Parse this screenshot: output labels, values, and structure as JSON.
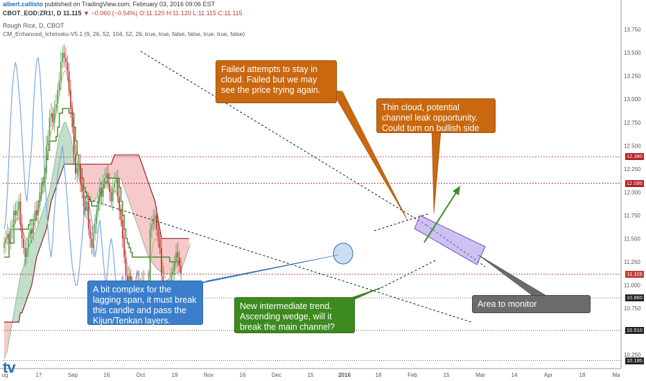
{
  "header": {
    "user": "albert.callisto",
    "published": "published on TradingView.com, February 03, 2016 09:06 EST",
    "symbol": "CBOT_EOD:ZR1!, D",
    "last": "11.115",
    "change": "▼ −0.060 (−0.54%)",
    "ohlc": "O:11.120 H:11.120 L:11.115 C:11.115",
    "instrument": "Rough Rice, D, CBOT",
    "indicator": "CM_Enhanced_Ichimoku-V5.1 (9, 26, 52, 104, 52, 26, true, true, false, false, true, true, false)"
  },
  "colors": {
    "up": "#53a153",
    "down": "#c13b3b",
    "tenkan": "#e0a060",
    "kijun": "#3f8f2d",
    "chikou": "#7aa6e6",
    "cloud_bull": "#a9d1b5",
    "cloud_bear": "#f2b3b3",
    "note_orange": "#c9680f",
    "note_blue": "#3b7fcc",
    "note_green": "#3d8a1f",
    "note_grey": "#6b6b6b",
    "level_red": "#b22222"
  },
  "annotations": [
    {
      "id": "failed",
      "text": "Failed attempts to stay in cloud. Failed but we may see the price trying again."
    },
    {
      "id": "thin",
      "text": "Thin cloud, potential channel leak opportunity. Could turn on bullish side"
    },
    {
      "id": "lagging",
      "text": "A bit complex for the lagging span, it must break this candle and pass the Kijun/Tenkan layers."
    },
    {
      "id": "intermediate",
      "text": "New intermediate trend. Ascending wedge, will it break the main channel?"
    },
    {
      "id": "area",
      "text": "Area to monitor"
    }
  ],
  "price_labels": [
    {
      "label": "12.380",
      "color": "#b22222"
    },
    {
      "label": "12.095",
      "color": "#b22222"
    },
    {
      "label": "11.115",
      "color": "#c13b3b"
    },
    {
      "label": "10.860",
      "color": "#222222"
    },
    {
      "label": "10.510",
      "color": "#222222"
    },
    {
      "label": "10.185",
      "color": "#222222"
    }
  ],
  "watermark": "tv",
  "chart_data": {
    "type": "candlestick",
    "title": "Rough Rice, D, CBOT",
    "ylim": [
      10.1,
      13.8
    ],
    "y_ticks": [
      "13.750",
      "13.500",
      "13.250",
      "13.000",
      "12.750",
      "12.500",
      "12.250",
      "12.000",
      "11.750",
      "11.500",
      "11.250",
      "11.000",
      "10.750",
      "10.500",
      "10.250"
    ],
    "x_ticks": [
      "ug",
      "17",
      "Sep",
      "16",
      "Oct",
      "19",
      "Nov",
      "16",
      "Dec",
      "15",
      "2016",
      "18",
      "Feb",
      "15",
      "Mar",
      "14",
      "Apr",
      "18",
      "Ma"
    ],
    "grid": false,
    "series": [
      {
        "name": "Price",
        "type": "candle",
        "close": [
          11.45,
          11.5,
          11.55,
          11.45,
          11.6,
          11.6,
          11.8,
          11.75,
          11.8,
          11.9,
          11.65,
          11.5,
          11.4,
          11.3,
          11.4,
          11.5,
          11.6,
          11.55,
          11.7,
          11.8,
          11.75,
          11.85,
          12.0,
          12.05,
          12.1,
          12.2,
          12.5,
          12.6,
          12.8,
          12.85,
          12.75,
          12.9,
          12.95,
          13.1,
          13.2,
          13.4,
          13.5,
          13.45,
          13.4,
          13.3,
          13.1,
          12.9,
          12.7,
          12.4,
          12.2,
          12.25,
          12.3,
          12.1,
          12.0,
          11.85,
          11.8,
          11.9,
          11.6,
          11.5,
          11.4,
          11.55,
          11.65,
          11.8,
          11.9,
          12.05,
          11.95,
          12.1,
          12.15,
          12.2,
          12.1,
          12.0,
          11.9,
          12.05,
          12.1,
          12.15,
          11.95,
          11.8,
          11.7,
          11.5,
          11.3,
          11.1,
          10.95,
          11.1,
          11.0,
          10.9,
          10.85,
          10.95,
          11.05,
          11.0,
          10.95,
          11.05,
          10.9,
          10.85,
          10.9,
          11.05,
          11.6,
          11.65,
          11.7,
          11.75,
          11.6,
          11.5,
          11.4,
          11.1,
          10.95,
          10.9,
          10.85,
          10.95,
          11.0,
          11.1,
          11.15,
          11.25,
          11.35,
          11.3,
          11.2,
          11.115
        ]
      },
      {
        "name": "Tenkan",
        "values": [
          11.45,
          11.48,
          11.52,
          11.55,
          11.58,
          11.62,
          11.66,
          11.7,
          11.72,
          11.72,
          11.68,
          11.62,
          11.55,
          11.5,
          11.5,
          11.52,
          11.55,
          11.58,
          11.62,
          11.68,
          11.74,
          11.8,
          11.88,
          11.95,
          12.05,
          12.15,
          12.3,
          12.45,
          12.55,
          12.65,
          12.7,
          12.75,
          12.85,
          12.95,
          13.05,
          13.15,
          13.25,
          13.3,
          13.3,
          13.25,
          13.15,
          13.0,
          12.85,
          12.65,
          12.45,
          12.35,
          12.28,
          12.2,
          12.1,
          12.0,
          11.92,
          11.85,
          11.75,
          11.65,
          11.6,
          11.62,
          11.68,
          11.75,
          11.85,
          11.95,
          12.0,
          12.05,
          12.1,
          12.12,
          12.1,
          12.05,
          12.0,
          12.0,
          12.02,
          12.0,
          11.95,
          11.85,
          11.75,
          11.6,
          11.45,
          11.3,
          11.2,
          11.15,
          11.1,
          11.05,
          11.0,
          11.0,
          11.0,
          11.0,
          10.98,
          10.96,
          10.95,
          10.95,
          10.98,
          11.05,
          11.2,
          11.35,
          11.45,
          11.5,
          11.5,
          11.45,
          11.4,
          11.3,
          11.2,
          11.1,
          11.05,
          11.05,
          11.08,
          11.12,
          11.15,
          11.2,
          11.25,
          11.25,
          11.22,
          11.2
        ]
      },
      {
        "name": "Kijun",
        "values": [
          11.3,
          11.3,
          11.3,
          11.45,
          11.45,
          11.45,
          11.6,
          11.6,
          11.6,
          11.6,
          11.6,
          11.6,
          11.6,
          11.6,
          11.6,
          11.65,
          11.7,
          11.7,
          11.7,
          11.7,
          11.8,
          11.9,
          11.95,
          12.1,
          12.15,
          12.25,
          12.35,
          12.45,
          12.55,
          12.55,
          12.55,
          12.55,
          12.6,
          12.7,
          12.85,
          12.85,
          12.9,
          12.9,
          12.9,
          12.9,
          12.85,
          12.85,
          12.85,
          12.7,
          12.55,
          12.4,
          12.3,
          12.25,
          12.15,
          12.05,
          12.0,
          11.95,
          11.95,
          11.9,
          11.85,
          11.85,
          11.85,
          11.85,
          11.95,
          12.0,
          12.0,
          12.05,
          12.1,
          12.1,
          12.15,
          12.15,
          12.15,
          12.15,
          12.15,
          12.15,
          12.15,
          12.05,
          11.9,
          11.75,
          11.6,
          11.5,
          11.45,
          11.4,
          11.35,
          11.3,
          11.3,
          11.3,
          11.3,
          11.3,
          11.3,
          11.3,
          11.3,
          11.3,
          11.3,
          11.3,
          11.3,
          11.3,
          11.3,
          11.3,
          11.3,
          11.3,
          11.3,
          11.3,
          11.3,
          11.3,
          11.3,
          11.3,
          11.25,
          11.25,
          11.25,
          11.25,
          11.25,
          11.25,
          11.25,
          11.25
        ]
      },
      {
        "name": "Chikou",
        "values": [
          11.6,
          11.7,
          12.0,
          12.4,
          12.8,
          13.1,
          13.3,
          13.4,
          13.3,
          13.1,
          12.9,
          12.6,
          12.3,
          12.0,
          11.9,
          12.1,
          12.3,
          12.5,
          12.9,
          13.2,
          13.4,
          13.45,
          13.3,
          13.0,
          12.6,
          12.2,
          11.9,
          11.6,
          11.4,
          11.3,
          11.5,
          11.8,
          12.0,
          12.2,
          12.3,
          12.4,
          12.5,
          12.3,
          12.1,
          11.9,
          11.6,
          11.4,
          11.2,
          11.1,
          11.0,
          11.0,
          11.1,
          11.3,
          11.5,
          11.7,
          11.9,
          12.0,
          11.9,
          11.8,
          11.7,
          11.5,
          11.3,
          11.4,
          11.6,
          11.7,
          11.5,
          11.3,
          11.1,
          11.0,
          11.2,
          11.4,
          11.5,
          11.4,
          11.2,
          11.0,
          10.9,
          10.85,
          11.0,
          11.1,
          11.0,
          10.95,
          11.0,
          11.1,
          11.05,
          11.0,
          10.9,
          11.05,
          11.15,
          11.1
        ]
      },
      {
        "name": "Senkou A",
        "values": [
          10.2,
          10.25,
          10.3,
          10.4,
          10.5,
          10.6,
          10.7,
          10.8,
          10.9,
          11.0,
          11.1,
          11.15,
          11.2,
          11.3,
          11.35,
          11.4,
          11.45,
          11.5,
          11.55,
          11.55,
          11.6,
          11.65,
          11.7,
          11.75,
          11.8,
          11.85,
          11.9,
          11.95,
          12.0,
          12.1,
          12.2,
          12.3,
          12.4,
          12.5,
          12.6,
          12.65,
          12.7,
          12.75,
          12.75,
          12.7,
          12.65,
          12.6,
          12.5,
          12.4,
          12.3,
          12.2,
          12.15,
          12.1,
          12.05,
          12.0,
          12.0,
          11.95,
          11.95,
          11.9,
          11.9,
          11.9,
          11.9,
          11.95,
          12.0,
          12.05,
          12.1,
          12.1,
          12.15,
          12.15,
          12.15,
          12.15,
          12.15,
          12.15,
          12.15,
          12.15,
          12.15,
          12.15,
          12.15,
          12.1,
          12.05,
          12.0,
          11.95,
          11.9,
          11.85,
          11.8,
          11.75,
          11.7,
          11.65,
          11.6,
          11.55,
          11.5,
          11.45,
          11.4,
          11.35,
          11.3,
          11.27,
          11.25,
          11.22,
          11.2,
          11.18,
          11.16,
          11.15,
          11.14,
          11.13,
          11.12,
          11.12,
          11.12,
          11.12,
          11.12,
          11.12,
          11.12,
          11.12,
          11.13,
          11.14,
          11.15,
          11.2,
          11.25,
          11.3,
          11.35,
          11.4,
          11.45
        ]
      },
      {
        "name": "Senkou B",
        "values": [
          10.6,
          10.6,
          10.6,
          10.6,
          10.6,
          10.6,
          10.6,
          10.6,
          10.6,
          10.6,
          10.7,
          10.7,
          10.75,
          10.8,
          10.85,
          10.9,
          10.95,
          11.0,
          11.1,
          11.2,
          11.3,
          11.35,
          11.4,
          11.45,
          11.5,
          11.55,
          11.6,
          11.7,
          11.8,
          11.9,
          11.95,
          12.0,
          12.05,
          12.1,
          12.15,
          12.2,
          12.25,
          12.3,
          12.3,
          12.3,
          12.3,
          12.3,
          12.3,
          12.3,
          12.3,
          12.3,
          12.3,
          12.3,
          12.3,
          12.3,
          12.3,
          12.3,
          12.3,
          12.3,
          12.3,
          12.3,
          12.3,
          12.3,
          12.3,
          12.3,
          12.3,
          12.3,
          12.3,
          12.3,
          12.3,
          12.3,
          12.3,
          12.35,
          12.4,
          12.4,
          12.4,
          12.4,
          12.4,
          12.4,
          12.4,
          12.4,
          12.4,
          12.4,
          12.4,
          12.4,
          12.4,
          12.4,
          12.4,
          12.4,
          12.35,
          12.3,
          12.25,
          12.2,
          12.15,
          12.1,
          12.05,
          12.0,
          11.95,
          11.9,
          11.8,
          11.7,
          11.6,
          11.5,
          11.5,
          11.5,
          11.5,
          11.5,
          11.5,
          11.5,
          11.5,
          11.5,
          11.5,
          11.5,
          11.5,
          11.5,
          11.5,
          11.5,
          11.5,
          11.5,
          11.5
        ]
      }
    ],
    "levels": [
      12.38,
      12.095,
      11.115,
      10.86,
      10.51,
      10.185
    ]
  }
}
